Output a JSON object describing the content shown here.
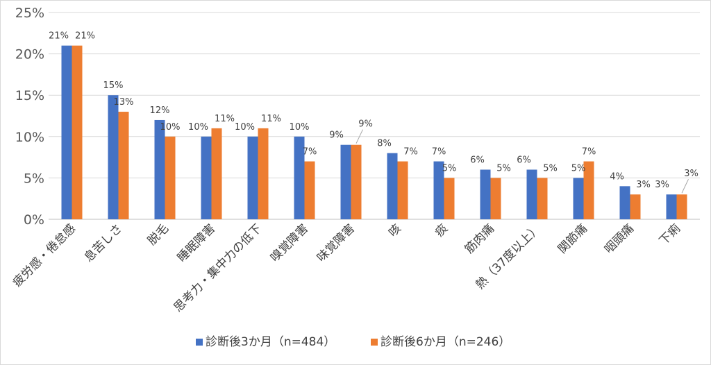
{
  "chart_data": {
    "type": "bar",
    "categories": [
      "疲労感・倦怠感",
      "息苦しさ",
      "脱毛",
      "睡眠障害",
      "思考力・集中力の低下",
      "嗅覚障害",
      "味覚障害",
      "咳",
      "痰",
      "筋肉痛",
      "熱（37度以上）",
      "関節痛",
      "咽頭痛",
      "下痢"
    ],
    "series": [
      {
        "name": "診断後3か月（n=484）",
        "color": "#4472c4",
        "values": [
          21,
          15,
          12,
          10,
          10,
          10,
          9,
          8,
          7,
          6,
          6,
          5,
          4,
          3
        ],
        "labels": [
          "21%",
          "15%",
          "12%",
          "10%",
          "10%",
          "10%",
          "9%",
          "8%",
          "7%",
          "6%",
          "6%",
          "5%",
          "4%",
          "3%"
        ]
      },
      {
        "name": "診断後6か月（n=246）",
        "color": "#ed7d31",
        "values": [
          21,
          13,
          10,
          11,
          11,
          7,
          9,
          7,
          5,
          5,
          5,
          7,
          3,
          3
        ],
        "labels": [
          "21%",
          "13%",
          "10%",
          "11%",
          "11%",
          "7%",
          "9%",
          "7%",
          "5%",
          "5%",
          "5%",
          "7%",
          "3%",
          "3%"
        ]
      }
    ],
    "yticks": [
      "0%",
      "5%",
      "10%",
      "15%",
      "20%",
      "25%"
    ],
    "ylim": [
      0,
      25
    ],
    "grid": true,
    "legend": "bottom"
  }
}
